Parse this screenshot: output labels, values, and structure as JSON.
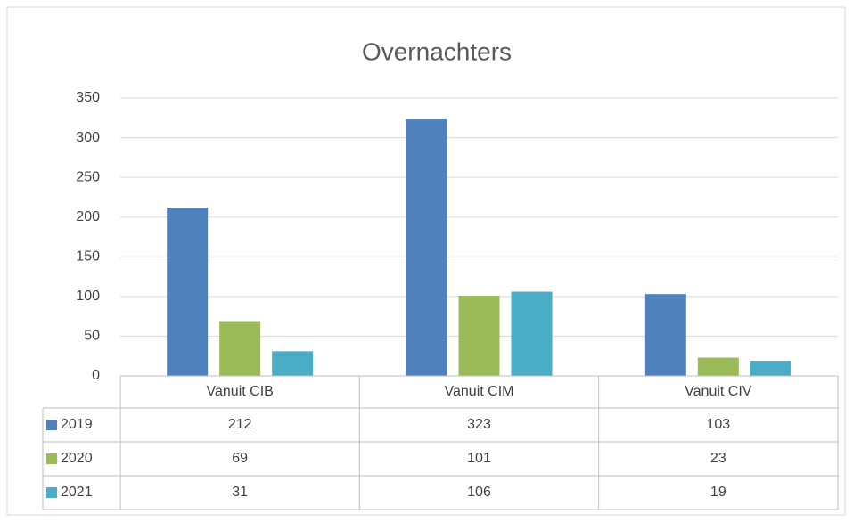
{
  "chart_data": {
    "type": "bar",
    "title": "Overnachters",
    "categories": [
      "Vanuit CIB",
      "Vanuit CIM",
      "Vanuit CIV"
    ],
    "series": [
      {
        "name": "2019",
        "color": "#4f81bd",
        "values": [
          212,
          323,
          103
        ]
      },
      {
        "name": "2020",
        "color": "#9bbb59",
        "values": [
          69,
          101,
          23
        ]
      },
      {
        "name": "2021",
        "color": "#4bacc6",
        "values": [
          31,
          106,
          19
        ]
      }
    ],
    "ylim": [
      0,
      350
    ],
    "yticks": [
      0,
      50,
      100,
      150,
      200,
      250,
      300,
      350
    ],
    "grid": true,
    "data_table": true
  }
}
